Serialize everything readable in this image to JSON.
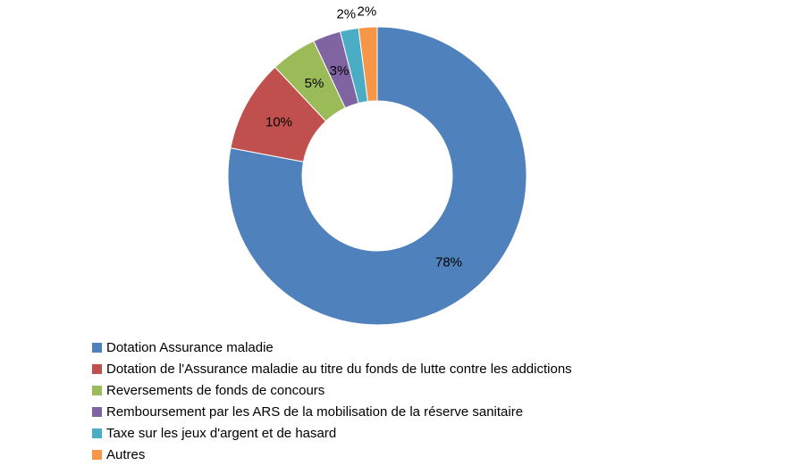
{
  "chart_data": {
    "type": "pie",
    "subtype": "donut",
    "title": "",
    "unit": "%",
    "categories": [
      "Dotation Assurance maladie",
      "Dotation de l'Assurance maladie au titre du fonds de lutte contre les addictions",
      "Reversements de fonds de concours",
      "Remboursement par les ARS de la mobilisation de la réserve sanitaire",
      "Taxe sur les jeux d'argent et de hasard",
      "Autres"
    ],
    "values": [
      78,
      10,
      5,
      3,
      2,
      2
    ],
    "labels": [
      "78%",
      "10%",
      "5%",
      "3%",
      "2%",
      "2%"
    ],
    "colors": [
      "#4F81BD",
      "#C0504D",
      "#9BBB59",
      "#8064A2",
      "#4BACC6",
      "#F79646"
    ],
    "start_angle_deg": 0,
    "direction": "clockwise",
    "donut_hole_ratio": 0.5,
    "legend_position": "bottom-left",
    "label_color": "#000000",
    "background": "#ffffff"
  }
}
